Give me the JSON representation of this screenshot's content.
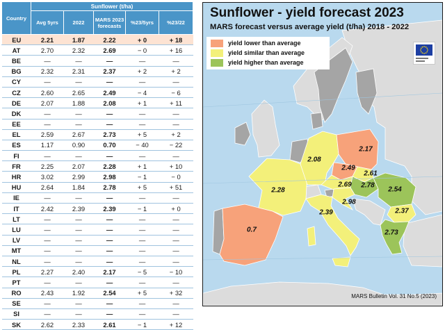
{
  "table": {
    "group_header": "Sunflower (t/ha)",
    "columns": [
      "Country",
      "Avg 5yrs",
      "2022",
      "MARS 2023 forecasts",
      "%23/5yrs",
      "%23/22"
    ],
    "rows": [
      [
        "EU",
        "2.21",
        "1.87",
        "2.22",
        "+ 0",
        "+ 18"
      ],
      [
        "AT",
        "2.70",
        "2.32",
        "2.69",
        "− 0",
        "+ 16"
      ],
      [
        "BE",
        "—",
        "—",
        "—",
        "—",
        "—"
      ],
      [
        "BG",
        "2.32",
        "2.31",
        "2.37",
        "+ 2",
        "+ 2"
      ],
      [
        "CY",
        "—",
        "—",
        "—",
        "—",
        "—"
      ],
      [
        "CZ",
        "2.60",
        "2.65",
        "2.49",
        "− 4",
        "− 6"
      ],
      [
        "DE",
        "2.07",
        "1.88",
        "2.08",
        "+ 1",
        "+ 11"
      ],
      [
        "DK",
        "—",
        "—",
        "—",
        "—",
        "—"
      ],
      [
        "EE",
        "—",
        "—",
        "—",
        "—",
        "—"
      ],
      [
        "EL",
        "2.59",
        "2.67",
        "2.73",
        "+ 5",
        "+ 2"
      ],
      [
        "ES",
        "1.17",
        "0.90",
        "0.70",
        "− 40",
        "− 22"
      ],
      [
        "FI",
        "—",
        "—",
        "—",
        "—",
        "—"
      ],
      [
        "FR",
        "2.25",
        "2.07",
        "2.28",
        "+ 1",
        "+ 10"
      ],
      [
        "HR",
        "3.02",
        "2.99",
        "2.98",
        "− 1",
        "− 0"
      ],
      [
        "HU",
        "2.64",
        "1.84",
        "2.78",
        "+ 5",
        "+ 51"
      ],
      [
        "IE",
        "—",
        "—",
        "—",
        "—",
        "—"
      ],
      [
        "IT",
        "2.42",
        "2.39",
        "2.39",
        "− 1",
        "+ 0"
      ],
      [
        "LT",
        "—",
        "—",
        "—",
        "—",
        "—"
      ],
      [
        "LU",
        "—",
        "—",
        "—",
        "—",
        "—"
      ],
      [
        "LV",
        "—",
        "—",
        "—",
        "—",
        "—"
      ],
      [
        "MT",
        "—",
        "—",
        "—",
        "—",
        "—"
      ],
      [
        "NL",
        "—",
        "—",
        "—",
        "—",
        "—"
      ],
      [
        "PL",
        "2.27",
        "2.40",
        "2.17",
        "− 5",
        "− 10"
      ],
      [
        "PT",
        "—",
        "—",
        "—",
        "—",
        "—"
      ],
      [
        "RO",
        "2.43",
        "1.92",
        "2.54",
        "+ 5",
        "+ 32"
      ],
      [
        "SE",
        "—",
        "—",
        "—",
        "—",
        "—"
      ],
      [
        "SI",
        "—",
        "—",
        "—",
        "—",
        "—"
      ],
      [
        "SK",
        "2.62",
        "2.33",
        "2.61",
        "− 1",
        "+ 12"
      ]
    ]
  },
  "map": {
    "title": "Sunflower - yield forecast 2023",
    "subtitle": "MARS forecast versus average yield (t/ha) 2018 - 2022",
    "legend": [
      {
        "label": "yield lower than average",
        "color": "#f7a27a"
      },
      {
        "label": "yield similar than average",
        "color": "#f3f07a"
      },
      {
        "label": "yield higher than average",
        "color": "#9cc45a"
      }
    ],
    "country_labels": [
      {
        "code": "PL",
        "value": "2.17",
        "class": "lower"
      },
      {
        "code": "DE",
        "value": "2.08",
        "class": "similar"
      },
      {
        "code": "CZ",
        "value": "2.49",
        "class": "lower"
      },
      {
        "code": "SK",
        "value": "2.61",
        "class": "similar"
      },
      {
        "code": "AT",
        "value": "2.69",
        "class": "similar"
      },
      {
        "code": "HU",
        "value": "2.78",
        "class": "higher"
      },
      {
        "code": "RO",
        "value": "2.54",
        "class": "higher"
      },
      {
        "code": "FR",
        "value": "2.28",
        "class": "similar"
      },
      {
        "code": "HR",
        "value": "2.98",
        "class": "similar"
      },
      {
        "code": "IT",
        "value": "2.39",
        "class": "similar"
      },
      {
        "code": "BG",
        "value": "2.37",
        "class": "similar"
      },
      {
        "code": "EL",
        "value": "2.73",
        "class": "higher"
      },
      {
        "code": "ES",
        "value": "0.7",
        "class": "lower"
      }
    ],
    "credit": "MARS Bulletin Vol. 31 No.5 (2023)",
    "colors": {
      "sea": "#b9d9ee",
      "non_eu": "#dcdcdc",
      "eu_no_data": "#a5a5a5",
      "lower": "#f7a27a",
      "similar": "#f3f07a",
      "higher": "#9cc45a",
      "table_header": "#4a95c8",
      "eu_row": "#fde3d3",
      "negative": "#e0242a",
      "positive": "#2b3fd3"
    }
  },
  "chart_data": {
    "type": "table",
    "title": "Sunflower (t/ha)",
    "columns": [
      "Country",
      "Avg 5yrs",
      "2022",
      "MARS 2023 forecasts",
      "%23/5yrs",
      "%23/22"
    ],
    "rows": [
      [
        "EU",
        2.21,
        1.87,
        2.22,
        0,
        18
      ],
      [
        "AT",
        2.7,
        2.32,
        2.69,
        0,
        16
      ],
      [
        "BG",
        2.32,
        2.31,
        2.37,
        2,
        2
      ],
      [
        "CZ",
        2.6,
        2.65,
        2.49,
        -4,
        -6
      ],
      [
        "DE",
        2.07,
        1.88,
        2.08,
        1,
        11
      ],
      [
        "EL",
        2.59,
        2.67,
        2.73,
        5,
        2
      ],
      [
        "ES",
        1.17,
        0.9,
        0.7,
        -40,
        -22
      ],
      [
        "FR",
        2.25,
        2.07,
        2.28,
        1,
        10
      ],
      [
        "HR",
        3.02,
        2.99,
        2.98,
        -1,
        0
      ],
      [
        "HU",
        2.64,
        1.84,
        2.78,
        5,
        51
      ],
      [
        "IT",
        2.42,
        2.39,
        2.39,
        -1,
        0
      ],
      [
        "PL",
        2.27,
        2.4,
        2.17,
        -5,
        -10
      ],
      [
        "RO",
        2.43,
        1.92,
        2.54,
        5,
        32
      ],
      [
        "SK",
        2.62,
        2.33,
        2.61,
        -1,
        12
      ]
    ]
  }
}
